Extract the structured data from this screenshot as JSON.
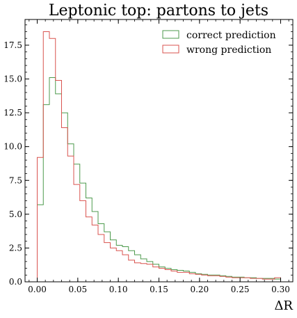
{
  "chart_data": {
    "type": "histogram-step",
    "title": "Leptonic top: partons to jets",
    "xlabel": "ΔR",
    "ylabel": "",
    "xlim": [
      -0.015,
      0.315
    ],
    "ylim": [
      0,
      19.4
    ],
    "grid": false,
    "legend_position": "top-right",
    "x_ticks": [
      "0.00",
      "0.05",
      "0.10",
      "0.15",
      "0.20",
      "0.25",
      "0.30"
    ],
    "y_ticks": [
      "0.0",
      "2.5",
      "5.0",
      "7.5",
      "10.0",
      "12.5",
      "15.0",
      "17.5"
    ],
    "x_tick_values": [
      0,
      0.05,
      0.1,
      0.15,
      0.2,
      0.25,
      0.3
    ],
    "y_tick_values": [
      0,
      2.5,
      5.0,
      7.5,
      10.0,
      12.5,
      15.0,
      17.5
    ],
    "bin_edges": [
      0.0,
      0.0075,
      0.015,
      0.0225,
      0.03,
      0.0375,
      0.045,
      0.0525,
      0.06,
      0.0675,
      0.075,
      0.0825,
      0.09,
      0.0975,
      0.105,
      0.1125,
      0.12,
      0.1275,
      0.135,
      0.1425,
      0.15,
      0.1575,
      0.165,
      0.1725,
      0.18,
      0.1875,
      0.195,
      0.2025,
      0.21,
      0.2175,
      0.225,
      0.2325,
      0.24,
      0.2475,
      0.255,
      0.2625,
      0.27,
      0.2775,
      0.285,
      0.2925,
      0.3
    ],
    "series": [
      {
        "name": "correct prediction",
        "color": "#4c9a4c",
        "values": [
          5.7,
          13.1,
          15.1,
          13.9,
          12.5,
          10.2,
          8.7,
          7.3,
          6.2,
          5.2,
          4.3,
          3.7,
          3.1,
          2.7,
          2.6,
          2.3,
          2.0,
          1.7,
          1.5,
          1.3,
          1.1,
          1.0,
          0.9,
          0.85,
          0.8,
          0.7,
          0.6,
          0.55,
          0.5,
          0.5,
          0.45,
          0.4,
          0.35,
          0.35,
          0.3,
          0.3,
          0.25,
          0.25,
          0.25,
          0.2
        ]
      },
      {
        "name": "wrong prediction",
        "color": "#d9534f",
        "values": [
          9.2,
          18.5,
          18.0,
          14.9,
          11.4,
          9.3,
          7.2,
          6.0,
          4.8,
          4.2,
          3.5,
          2.9,
          2.5,
          2.3,
          2.0,
          1.6,
          1.4,
          1.35,
          1.3,
          1.1,
          1.0,
          0.9,
          0.8,
          0.7,
          0.7,
          0.6,
          0.55,
          0.5,
          0.45,
          0.45,
          0.4,
          0.35,
          0.3,
          0.3,
          0.3,
          0.25,
          0.25,
          0.2,
          0.2,
          0.3
        ]
      }
    ]
  }
}
